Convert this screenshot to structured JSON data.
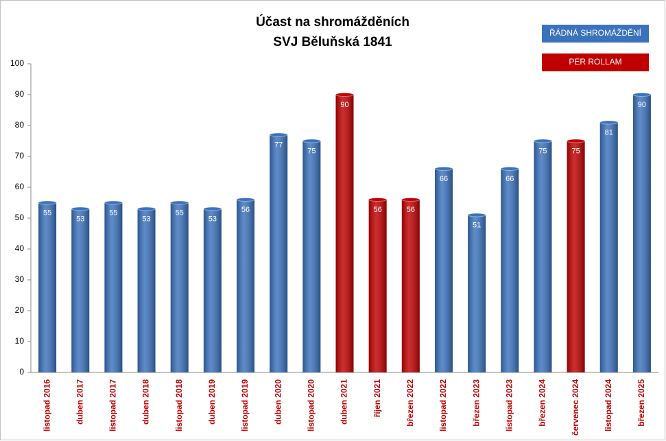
{
  "chart_data": {
    "type": "bar",
    "title": "Účast na shromážděních",
    "subtitle": "SVJ Běluňská 1841",
    "categories": [
      "listopad 2016",
      "duben 2017",
      "listopad 2017",
      "duben 2018",
      "listopad 2018",
      "duben 2019",
      "listopad 2019",
      "duben 2020",
      "listopad 2020",
      "duben 2021",
      "říjen 2021",
      "březen 2022",
      "listopad 2022",
      "březen 2023",
      "listopad 2023",
      "březen 2024",
      "červenec 2024",
      "listopad 2024",
      "březen 2025"
    ],
    "series": [
      {
        "name": "ŘÁDNÁ SHROMÁŽDĚNÍ",
        "color": "#3b72bd",
        "values": [
          55,
          53,
          55,
          53,
          55,
          53,
          56,
          77,
          75,
          null,
          null,
          null,
          66,
          51,
          66,
          75,
          null,
          81,
          90
        ]
      },
      {
        "name": "PER ROLLAM",
        "color": "#c00000",
        "values": [
          null,
          null,
          null,
          null,
          null,
          null,
          null,
          null,
          null,
          90,
          56,
          56,
          null,
          null,
          null,
          null,
          75,
          null,
          null
        ]
      }
    ],
    "ylim": [
      0,
      100
    ],
    "yticks": [
      0,
      10,
      20,
      30,
      40,
      50,
      60,
      70,
      80,
      90,
      100
    ],
    "category_label_color": "#c00000",
    "grid": false,
    "legend": "top-right"
  }
}
